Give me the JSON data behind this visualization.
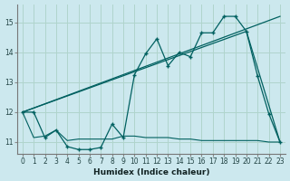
{
  "xlabel": "Humidex (Indice chaleur)",
  "bg_color": "#cce8ee",
  "grid_color": "#b0d4cc",
  "line_color": "#006060",
  "xlim": [
    -0.5,
    23.5
  ],
  "ylim": [
    10.6,
    15.6
  ],
  "yticks": [
    11,
    12,
    13,
    14,
    15
  ],
  "xticks": [
    0,
    1,
    2,
    3,
    4,
    5,
    6,
    7,
    8,
    9,
    10,
    11,
    12,
    13,
    14,
    15,
    16,
    17,
    18,
    19,
    20,
    21,
    22,
    23
  ],
  "line1_x": [
    0,
    1,
    2,
    3,
    4,
    5,
    6,
    7,
    8,
    9,
    10,
    11,
    12,
    13,
    14,
    15,
    16,
    17,
    18,
    19,
    20,
    21,
    22,
    23
  ],
  "line1_y": [
    12.0,
    12.0,
    11.15,
    11.4,
    10.85,
    10.75,
    10.75,
    10.82,
    11.6,
    11.15,
    13.25,
    13.95,
    14.45,
    13.55,
    14.0,
    13.85,
    14.65,
    14.65,
    15.2,
    15.2,
    14.7,
    13.2,
    11.95,
    11.0
  ],
  "line2_x": [
    0,
    1,
    2,
    3,
    4,
    5,
    6,
    7,
    8,
    9,
    10,
    11,
    12,
    13,
    14,
    15,
    16,
    17,
    18,
    19,
    20,
    21,
    22,
    23
  ],
  "line2_y": [
    12.0,
    11.15,
    11.2,
    11.4,
    11.05,
    11.1,
    11.1,
    11.1,
    11.1,
    11.2,
    11.2,
    11.15,
    11.15,
    11.15,
    11.1,
    11.1,
    11.05,
    11.05,
    11.05,
    11.05,
    11.05,
    11.05,
    11.0,
    11.0
  ],
  "line3_x": [
    0,
    23
  ],
  "line3_y": [
    12.0,
    15.2
  ],
  "line4_x": [
    0,
    20,
    23
  ],
  "line4_y": [
    12.0,
    14.7,
    11.0
  ]
}
